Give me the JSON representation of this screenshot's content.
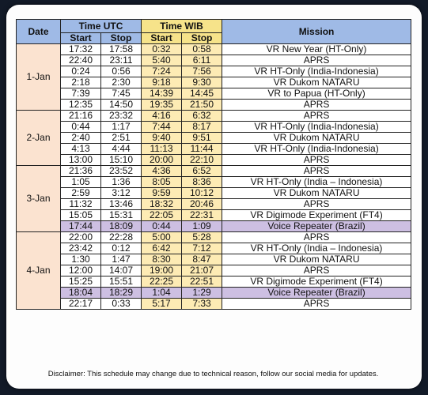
{
  "header": {
    "date": "Date",
    "time_utc": "Time UTC",
    "time_wib": "Time WIB",
    "mission": "Mission",
    "start": "Start",
    "stop": "Stop"
  },
  "days": [
    {
      "date": "1-Jan",
      "rows": [
        {
          "utc_start": "17:32",
          "utc_stop": "17:58",
          "wib_start": "0:32",
          "wib_stop": "0:58",
          "mission": "VR New Year (HT-Only)",
          "type": "normal"
        },
        {
          "utc_start": "22:40",
          "utc_stop": "23:11",
          "wib_start": "5:40",
          "wib_stop": "6:11",
          "mission": "APRS",
          "type": "normal"
        },
        {
          "utc_start": "0:24",
          "utc_stop": "0:56",
          "wib_start": "7:24",
          "wib_stop": "7:56",
          "mission": "VR HT-Only (India-Indonesia)",
          "type": "normal"
        },
        {
          "utc_start": "2:18",
          "utc_stop": "2:30",
          "wib_start": "9:18",
          "wib_stop": "9:30",
          "mission": "VR Dukom NATARU",
          "type": "normal"
        },
        {
          "utc_start": "7:39",
          "utc_stop": "7:45",
          "wib_start": "14:39",
          "wib_stop": "14:45",
          "mission": "VR to Papua (HT-Only)",
          "type": "normal"
        },
        {
          "utc_start": "12:35",
          "utc_stop": "14:50",
          "wib_start": "19:35",
          "wib_stop": "21:50",
          "mission": "APRS",
          "type": "normal"
        }
      ]
    },
    {
      "date": "2-Jan",
      "rows": [
        {
          "utc_start": "21:16",
          "utc_stop": "23:32",
          "wib_start": "4:16",
          "wib_stop": "6:32",
          "mission": "APRS",
          "type": "normal"
        },
        {
          "utc_start": "0:44",
          "utc_stop": "1:17",
          "wib_start": "7:44",
          "wib_stop": "8:17",
          "mission": "VR HT-Only (India-Indonesia)",
          "type": "normal"
        },
        {
          "utc_start": "2:40",
          "utc_stop": "2:51",
          "wib_start": "9:40",
          "wib_stop": "9:51",
          "mission": "VR Dukom NATARU",
          "type": "normal"
        },
        {
          "utc_start": "4:13",
          "utc_stop": "4:44",
          "wib_start": "11:13",
          "wib_stop": "11:44",
          "mission": "VR HT-Only (India-Indonesia)",
          "type": "normal"
        },
        {
          "utc_start": "13:00",
          "utc_stop": "15:10",
          "wib_start": "20:00",
          "wib_stop": "22:10",
          "mission": "APRS",
          "type": "normal"
        }
      ]
    },
    {
      "date": "3-Jan",
      "rows": [
        {
          "utc_start": "21:36",
          "utc_stop": "23:52",
          "wib_start": "4:36",
          "wib_stop": "6:52",
          "mission": "APRS",
          "type": "normal"
        },
        {
          "utc_start": "1:05",
          "utc_stop": "1:36",
          "wib_start": "8:05",
          "wib_stop": "8:36",
          "mission": "VR HT-Only (India – Indonesia)",
          "type": "normal"
        },
        {
          "utc_start": "2:59",
          "utc_stop": "3:12",
          "wib_start": "9:59",
          "wib_stop": "10:12",
          "mission": "VR Dukom NATARU",
          "type": "normal"
        },
        {
          "utc_start": "11:32",
          "utc_stop": "13:46",
          "wib_start": "18:32",
          "wib_stop": "20:46",
          "mission": "APRS",
          "type": "normal"
        },
        {
          "utc_start": "15:05",
          "utc_stop": "15:31",
          "wib_start": "22:05",
          "wib_stop": "22:31",
          "mission": "VR Digimode Experiment (FT4)",
          "type": "normal"
        },
        {
          "utc_start": "17:44",
          "utc_stop": "18:09",
          "wib_start": "0:44",
          "wib_stop": "1:09",
          "mission": "Voice Repeater (Brazil)",
          "type": "voice"
        }
      ]
    },
    {
      "date": "4-Jan",
      "rows": [
        {
          "utc_start": "22:00",
          "utc_stop": "22:28",
          "wib_start": "5:00",
          "wib_stop": "5:28",
          "mission": "APRS",
          "type": "normal"
        },
        {
          "utc_start": "23:42",
          "utc_stop": "0:12",
          "wib_start": "6:42",
          "wib_stop": "7:12",
          "mission": "VR HT-Only (India – Indonesia)",
          "type": "normal"
        },
        {
          "utc_start": "1:30",
          "utc_stop": "1:47",
          "wib_start": "8:30",
          "wib_stop": "8:47",
          "mission": "VR Dukom NATARU",
          "type": "normal"
        },
        {
          "utc_start": "12:00",
          "utc_stop": "14:07",
          "wib_start": "19:00",
          "wib_stop": "21:07",
          "mission": "APRS",
          "type": "normal"
        },
        {
          "utc_start": "15:25",
          "utc_stop": "15:51",
          "wib_start": "22:25",
          "wib_stop": "22:51",
          "mission": "VR Digimode Experiment (FT4)",
          "type": "normal"
        },
        {
          "utc_start": "18:04",
          "utc_stop": "18:29",
          "wib_start": "1:04",
          "wib_stop": "1:29",
          "mission": "Voice Repeater (Brazil)",
          "type": "voice"
        },
        {
          "utc_start": "22:17",
          "utc_stop": "0:33",
          "wib_start": "5:17",
          "wib_stop": "7:33",
          "mission": "APRS",
          "type": "normal"
        }
      ]
    }
  ],
  "disclaimer": "Disclaimer: This schedule may change due to technical reason, follow our social media for updates.",
  "colors": {
    "header_utc": "#9fbae6",
    "header_wib": "#f6e38a",
    "date_cell": "#fbe3d0",
    "wib_cell": "#fdebb4",
    "voice_row": "#cdbfe2"
  }
}
